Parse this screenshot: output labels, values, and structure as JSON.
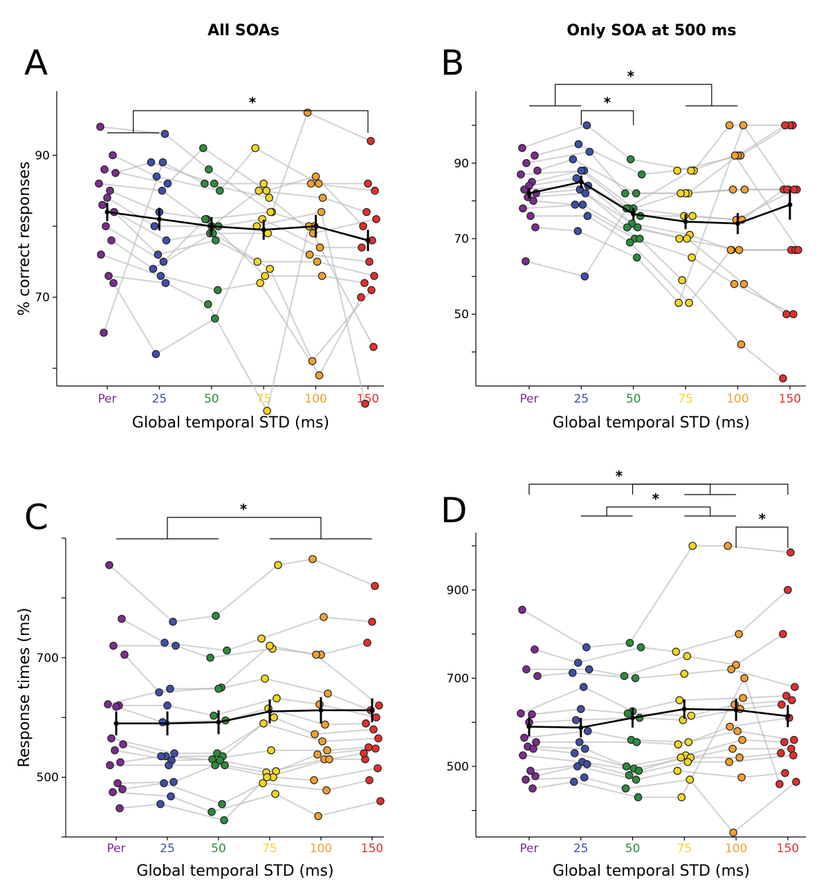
{
  "figure": {
    "column_titles": [
      "All SOAs",
      "Only SOA at 500 ms"
    ],
    "x_axis_title": "Global temporal STD (ms)",
    "colors": {
      "Per": "#7b2d8e",
      "25": "#3f4fa8",
      "50": "#2e8b3e",
      "75": "#f2d624",
      "100": "#f0a030",
      "150": "#e03030"
    }
  },
  "chart_data": [
    {
      "panel": "A",
      "type": "scatter",
      "title": "All SOAs",
      "xlabel": "Global temporal STD (ms)",
      "ylabel": "% correct responses",
      "categories": [
        "Per",
        "25",
        "50",
        "75",
        "100",
        "150"
      ],
      "yticks": [
        90,
        70
      ],
      "ylim": [
        57.5,
        99
      ],
      "mean": [
        82,
        81,
        80,
        79.5,
        80,
        78
      ],
      "sem": [
        1.3,
        1.6,
        1.3,
        1.4,
        1.6,
        1.5
      ],
      "significance": [
        {
          "left": [
            0,
            1
          ],
          "right": [
            5,
            5
          ],
          "label": "*"
        }
      ],
      "subjects": [
        [
          94,
          93,
          88,
          82,
          96,
          92
        ],
        [
          90,
          87,
          85,
          91,
          86,
          86
        ],
        [
          88,
          86,
          91,
          85,
          87,
          80
        ],
        [
          87.5,
          89,
          86,
          86,
          86,
          85
        ],
        [
          86,
          85,
          80,
          85,
          84,
          82
        ],
        [
          85,
          82,
          81,
          82,
          80,
          78
        ],
        [
          84,
          80,
          80,
          81,
          77,
          77
        ],
        [
          83,
          78,
          79,
          79,
          76,
          75
        ],
        [
          82,
          76,
          78,
          75,
          75,
          73
        ],
        [
          80,
          75,
          81,
          73,
          73,
          72
        ],
        [
          78,
          74,
          79,
          74,
          61,
          71
        ],
        [
          76,
          73,
          71,
          72,
          59,
          70
        ],
        [
          73,
          72,
          69,
          54,
          80,
          63
        ],
        [
          72,
          62,
          67,
          80,
          82,
          55
        ],
        [
          65,
          89,
          86,
          84,
          79,
          81
        ]
      ]
    },
    {
      "panel": "B",
      "type": "scatter",
      "title": "Only SOA at 500 ms",
      "xlabel": "Global temporal STD (ms)",
      "ylabel": "",
      "categories": [
        "Per",
        "25",
        "50",
        "75",
        "100",
        "150"
      ],
      "yticks": [
        90,
        70,
        50
      ],
      "ylim": [
        31,
        109
      ],
      "mean": [
        82,
        85,
        76.5,
        74.5,
        74,
        79
      ],
      "sem": [
        1.4,
        1.7,
        1.6,
        2.0,
        2.8,
        4.0
      ],
      "significance": [
        {
          "left": [
            0,
            1
          ],
          "right": [
            3,
            4
          ],
          "label": "*"
        },
        {
          "left": [
            1,
            1
          ],
          "right": [
            2,
            2
          ],
          "label": "*"
        }
      ],
      "subjects": [
        [
          94,
          100,
          91,
          88,
          100,
          100
        ],
        [
          92,
          95,
          87,
          88,
          92,
          100
        ],
        [
          90,
          93,
          82,
          82,
          92,
          100
        ],
        [
          88,
          91,
          82,
          82,
          83,
          83
        ],
        [
          87,
          88,
          78,
          82,
          83,
          83
        ],
        [
          85,
          88,
          78,
          76,
          75,
          83
        ],
        [
          84,
          86,
          76,
          76,
          75,
          83
        ],
        [
          83,
          84,
          74,
          71,
          67,
          67
        ],
        [
          82,
          83,
          73,
          70,
          67,
          67
        ],
        [
          81,
          82,
          73,
          70,
          58,
          50
        ],
        [
          80,
          79,
          70,
          65,
          58,
          50
        ],
        [
          78,
          79,
          70,
          59,
          42,
          33
        ],
        [
          76,
          76,
          69,
          53,
          67,
          67
        ],
        [
          73,
          72,
          65,
          53,
          100,
          83
        ],
        [
          64,
          60,
          78,
          88,
          92,
          67
        ]
      ]
    },
    {
      "panel": "C",
      "type": "scatter",
      "title": "",
      "xlabel": "Global temporal STD (ms)",
      "ylabel": "Response times (ms)",
      "categories": [
        "Per",
        "25",
        "50",
        "75",
        "100",
        "150"
      ],
      "yticks": [
        700,
        500
      ],
      "ylim": [
        400,
        900
      ],
      "mean": [
        590,
        590,
        592,
        610,
        612,
        612
      ],
      "sem": [
        20,
        20,
        20,
        20,
        22,
        20
      ],
      "significance": [
        {
          "left": [
            0,
            2
          ],
          "right": [
            3,
            5
          ],
          "label": "*"
        }
      ],
      "subjects": [
        [
          855,
          760,
          770,
          855,
          865,
          820
        ],
        [
          765,
          725,
          712,
          732,
          768,
          760
        ],
        [
          720,
          720,
          700,
          715,
          705,
          725
        ],
        [
          705,
          642,
          650,
          720,
          705,
          620
        ],
        [
          622,
          648,
          648,
          665,
          640,
          612
        ],
        [
          620,
          620,
          603,
          632,
          622,
          600
        ],
        [
          618,
          592,
          595,
          615,
          588,
          590
        ],
        [
          565,
          540,
          540,
          600,
          572,
          580
        ],
        [
          555,
          535,
          535,
          590,
          560,
          565
        ],
        [
          545,
          528,
          530,
          545,
          545,
          550
        ],
        [
          525,
          535,
          528,
          510,
          538,
          548
        ],
        [
          520,
          520,
          520,
          508,
          530,
          530
        ],
        [
          490,
          492,
          520,
          500,
          495,
          515
        ],
        [
          480,
          490,
          455,
          490,
          478,
          495
        ],
        [
          475,
          468,
          442,
          472,
          435,
          460
        ],
        [
          448,
          455,
          428,
          500,
          530,
          540
        ]
      ]
    },
    {
      "panel": "D",
      "type": "scatter",
      "title": "",
      "xlabel": "Global temporal STD (ms)",
      "ylabel": "",
      "categories": [
        "Per",
        "25",
        "50",
        "75",
        "100",
        "150"
      ],
      "yticks": [
        900,
        700,
        500
      ],
      "ylim": [
        340,
        1030
      ],
      "mean": [
        590,
        588,
        610,
        630,
        628,
        614
      ],
      "sem": [
        22,
        22,
        22,
        22,
        25,
        25
      ],
      "significance": [
        {
          "left": [
            0,
            0
          ],
          "right": [
            3,
            4
          ],
          "label": "*"
        },
        {
          "left": [
            2,
            2
          ],
          "right": [
            5,
            5
          ],
          "label": "*"
        },
        {
          "left": [
            1,
            2
          ],
          "right": [
            3,
            4
          ],
          "label": "*"
        },
        {
          "left": [
            4,
            4
          ],
          "right": [
            5,
            5
          ],
          "label": "*"
        }
      ],
      "subjects": [
        [
          855,
          770,
          780,
          1000,
          1000,
          985
        ],
        [
          765,
          735,
          770,
          760,
          800,
          900
        ],
        [
          720,
          720,
          705,
          750,
          730,
          800
        ],
        [
          705,
          712,
          700,
          710,
          720,
          680
        ],
        [
          620,
          680,
          625,
          650,
          655,
          660
        ],
        [
          618,
          630,
          620,
          615,
          640,
          650
        ],
        [
          600,
          605,
          610,
          605,
          630,
          640
        ],
        [
          565,
          580,
          560,
          555,
          590,
          610
        ],
        [
          555,
          555,
          555,
          550,
          580,
          560
        ],
        [
          545,
          540,
          500,
          525,
          560,
          555
        ],
        [
          540,
          530,
          495,
          520,
          540,
          540
        ],
        [
          525,
          510,
          490,
          520,
          520,
          530
        ],
        [
          490,
          505,
          480,
          510,
          510,
          525
        ],
        [
          478,
          500,
          470,
          490,
          475,
          485
        ],
        [
          470,
          475,
          450,
          470,
          350,
          465
        ],
        [
          450,
          465,
          430,
          430,
          700,
          460
        ]
      ]
    }
  ]
}
